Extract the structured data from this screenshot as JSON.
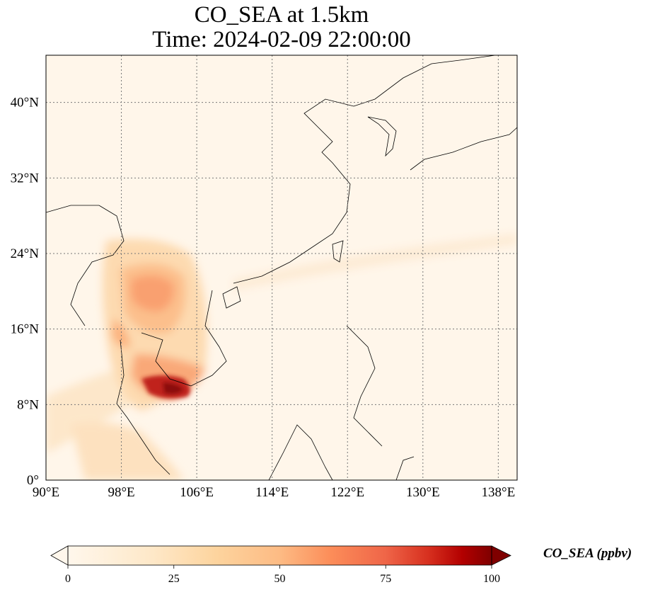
{
  "title": {
    "line1": "CO_SEA at 1.5km",
    "line2": "Time: 2024-02-09 22:00:00"
  },
  "map": {
    "lon_range": [
      90,
      140
    ],
    "lat_range": [
      0,
      45
    ],
    "lon_ticks": [
      {
        "value": 90,
        "label": "90°E"
      },
      {
        "value": 98,
        "label": "98°E"
      },
      {
        "value": 106,
        "label": "106°E"
      },
      {
        "value": 114,
        "label": "114°E"
      },
      {
        "value": 122,
        "label": "122°E"
      },
      {
        "value": 130,
        "label": "130°E"
      },
      {
        "value": 138,
        "label": "138°E"
      }
    ],
    "lat_ticks": [
      {
        "value": 0,
        "label": "0°"
      },
      {
        "value": 8,
        "label": "8°N"
      },
      {
        "value": 16,
        "label": "16°N"
      },
      {
        "value": 24,
        "label": "24°N"
      },
      {
        "value": 32,
        "label": "32°N"
      },
      {
        "value": 40,
        "label": "40°N"
      }
    ],
    "gridlines": true,
    "background_color": "#fff6ea"
  },
  "colorbar": {
    "label": "CO_SEA (ppbv)",
    "min": 0,
    "max": 100,
    "ticks": [
      {
        "value": 0,
        "label": "0"
      },
      {
        "value": 25,
        "label": "25"
      },
      {
        "value": 50,
        "label": "50"
      },
      {
        "value": 75,
        "label": "75"
      },
      {
        "value": 100,
        "label": "100"
      }
    ],
    "colormap": "OrRd",
    "colors": [
      "#fff7ec",
      "#fdd49e",
      "#fc8d59",
      "#d7301f",
      "#7f0000"
    ]
  }
}
